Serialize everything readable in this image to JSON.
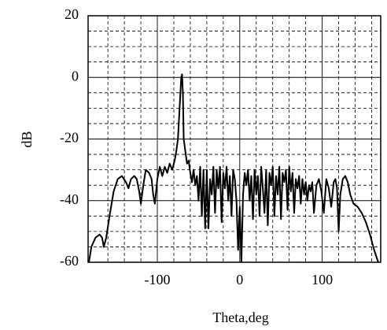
{
  "chart_data": {
    "type": "line",
    "xlabel": "Theta,deg",
    "ylabel": "dB",
    "color": "#000000",
    "xlim": [
      -184,
      171
    ],
    "ylim": [
      -60,
      20
    ],
    "xticks": [
      -100,
      0,
      100
    ],
    "yticks": [
      20,
      0,
      -20,
      -40,
      -60
    ],
    "xminor": [
      -160,
      -140,
      -120,
      -80,
      -60,
      -40,
      -20,
      20,
      40,
      60,
      80,
      120,
      140,
      160
    ],
    "yminor": [
      -55,
      -50,
      -45,
      -35,
      -30,
      -25,
      -15,
      -10,
      -5,
      5,
      10,
      15
    ],
    "grid": true,
    "x": [
      -183,
      -180,
      -175,
      -170,
      -167,
      -165,
      -162,
      -158,
      -153,
      -148,
      -143,
      -138,
      -135,
      -132,
      -128,
      -125,
      -122,
      -120,
      -117,
      -114,
      -110,
      -107,
      -105,
      -103,
      -100,
      -97,
      -94,
      -91,
      -88,
      -85,
      -82,
      -79,
      -77,
      -75,
      -73,
      -71,
      -70,
      -69,
      -68,
      -66,
      -64,
      -62,
      -60,
      -58,
      -56,
      -54,
      -52,
      -50,
      -48,
      -46,
      -44,
      -42,
      -40,
      -38,
      -36,
      -34,
      -32,
      -30,
      -28,
      -26,
      -24,
      -22,
      -20,
      -18,
      -16,
      -14,
      -12,
      -10,
      -8,
      -6,
      -4,
      -2,
      0,
      2,
      4,
      6,
      8,
      10,
      12,
      14,
      16,
      18,
      20,
      22,
      24,
      26,
      28,
      30,
      32,
      34,
      36,
      38,
      40,
      42,
      44,
      46,
      48,
      50,
      52,
      54,
      56,
      58,
      60,
      62,
      64,
      66,
      68,
      70,
      72,
      74,
      76,
      78,
      80,
      82,
      84,
      86,
      88,
      90,
      93,
      96,
      99,
      102,
      105,
      108,
      111,
      114,
      116,
      118,
      120,
      122,
      125,
      128,
      131,
      134,
      138,
      143,
      148,
      153,
      158,
      163,
      168
    ],
    "values": [
      -60,
      -55,
      -52,
      -51,
      -52,
      -55,
      -52,
      -45,
      -37,
      -33,
      -32,
      -34,
      -36,
      -33,
      -32,
      -33,
      -37,
      -41,
      -35,
      -30,
      -31,
      -33,
      -38,
      -41,
      -33,
      -29,
      -32,
      -29,
      -31,
      -28,
      -30,
      -27,
      -24,
      -20,
      -10,
      0,
      1,
      -5,
      -20,
      -24,
      -28,
      -27,
      -31,
      -34,
      -30,
      -35,
      -32,
      -40,
      -29,
      -45,
      -30,
      -49,
      -30,
      -49,
      -33,
      -38,
      -29,
      -44,
      -30,
      -36,
      -29,
      -47,
      -31,
      -36,
      -29,
      -40,
      -32,
      -45,
      -30,
      -33,
      -40,
      -56,
      -42,
      -60,
      -38,
      -31,
      -35,
      -30,
      -40,
      -32,
      -46,
      -30,
      -38,
      -32,
      -45,
      -29,
      -36,
      -44,
      -30,
      -48,
      -31,
      -35,
      -29,
      -45,
      -32,
      -38,
      -29,
      -46,
      -31,
      -34,
      -30,
      -43,
      -29,
      -37,
      -31,
      -44,
      -33,
      -36,
      -32,
      -41,
      -33,
      -38,
      -34,
      -40,
      -35,
      -37,
      -34,
      -44,
      -35,
      -33,
      -37,
      -44,
      -33,
      -36,
      -42,
      -34,
      -33,
      -36,
      -50,
      -38,
      -33,
      -32,
      -34,
      -38,
      -41,
      -42,
      -44,
      -47,
      -51,
      -56,
      -60
    ]
  }
}
